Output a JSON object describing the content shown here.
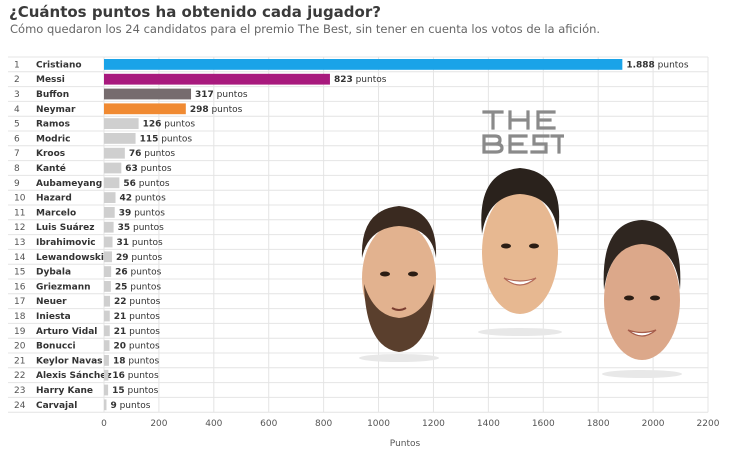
{
  "title": "¿Cuántos puntos ha obtenido cada jugador?",
  "subtitle": "Cómo quedaron los 24 candidatos para el premio The Best, sin tener en cuenta los votos de la afición.",
  "logo_text": "THE BEST",
  "colors": {
    "cristiano": "#1aa3e8",
    "messi": "#a8197d",
    "buffon": "#766c6e",
    "neymar": "#f08a32",
    "default": "#cfcfcf",
    "grid": "#e4e4e4"
  },
  "chart_data": {
    "type": "bar",
    "orientation": "horizontal",
    "title": "¿Cuántos puntos ha obtenido cada jugador?",
    "subtitle": "Cómo quedaron los 24 candidatos para el premio The Best, sin tener en cuenta los votos de la afición.",
    "xlabel": "Puntos",
    "ylabel": "",
    "xlim": [
      0,
      2200
    ],
    "xticks": [
      0,
      200,
      400,
      600,
      800,
      1000,
      1200,
      1400,
      1600,
      1800,
      2000,
      2200
    ],
    "value_suffix": "puntos",
    "ranks": [
      "1",
      "2",
      "3",
      "4",
      "5",
      "6",
      "7",
      "8",
      "9",
      "10",
      "11",
      "12",
      "13",
      "14",
      "15",
      "16",
      "17",
      "18",
      "19",
      "20",
      "21",
      "22",
      "23",
      "24"
    ],
    "categories": [
      "Cristiano",
      "Messi",
      "Buffon",
      "Neymar",
      "Ramos",
      "Modric",
      "Kroos",
      "Kanté",
      "Aubameyang",
      "Hazard",
      "Marcelo",
      "Luis Suárez",
      "Ibrahimovic",
      "Lewandowski",
      "Dybala",
      "Griezmann",
      "Neuer",
      "Iniesta",
      "Arturo Vidal",
      "Bonucci",
      "Keylor Navas",
      "Alexis Sánchez",
      "Harry Kane",
      "Carvajal"
    ],
    "values": [
      1888,
      823,
      317,
      298,
      126,
      115,
      76,
      63,
      56,
      42,
      39,
      35,
      31,
      29,
      26,
      25,
      22,
      21,
      21,
      20,
      18,
      16,
      15,
      9
    ],
    "value_labels": [
      "1.888",
      "823",
      "317",
      "298",
      "126",
      "115",
      "76",
      "63",
      "56",
      "42",
      "39",
      "35",
      "31",
      "29",
      "26",
      "25",
      "22",
      "21",
      "21",
      "20",
      "18",
      "16",
      "15",
      "9"
    ],
    "bar_colors": [
      "#1aa3e8",
      "#a8197d",
      "#766c6e",
      "#f08a32",
      "#cfcfcf",
      "#cfcfcf",
      "#cfcfcf",
      "#cfcfcf",
      "#cfcfcf",
      "#cfcfcf",
      "#cfcfcf",
      "#cfcfcf",
      "#cfcfcf",
      "#cfcfcf",
      "#cfcfcf",
      "#cfcfcf",
      "#cfcfcf",
      "#cfcfcf",
      "#cfcfcf",
      "#cfcfcf",
      "#cfcfcf",
      "#cfcfcf",
      "#cfcfcf",
      "#cfcfcf"
    ],
    "grid": true,
    "legend": "none"
  }
}
